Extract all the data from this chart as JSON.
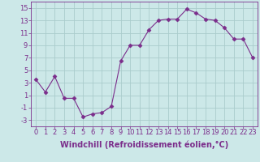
{
  "x": [
    0,
    1,
    2,
    3,
    4,
    5,
    6,
    7,
    8,
    9,
    10,
    11,
    12,
    13,
    14,
    15,
    16,
    17,
    18,
    19,
    20,
    21,
    22,
    23
  ],
  "y": [
    3.5,
    1.5,
    4.0,
    0.5,
    0.5,
    -2.5,
    -2.0,
    -1.8,
    -0.8,
    6.5,
    9.0,
    9.0,
    11.5,
    13.0,
    13.2,
    13.2,
    14.8,
    14.2,
    13.2,
    13.0,
    11.8,
    10.0,
    10.0,
    7.0
  ],
  "line_color": "#7B2D8B",
  "marker": "D",
  "marker_size": 2.5,
  "bg_color": "#cce8e8",
  "grid_color": "#aacccc",
  "xlabel": "Windchill (Refroidissement éolien,°C)",
  "xlim": [
    -0.5,
    23.5
  ],
  "ylim": [
    -4,
    16
  ],
  "yticks": [
    -3,
    -1,
    1,
    3,
    5,
    7,
    9,
    11,
    13,
    15
  ],
  "xticks": [
    0,
    1,
    2,
    3,
    4,
    5,
    6,
    7,
    8,
    9,
    10,
    11,
    12,
    13,
    14,
    15,
    16,
    17,
    18,
    19,
    20,
    21,
    22,
    23
  ],
  "tick_fontsize": 6,
  "xlabel_fontsize": 7
}
